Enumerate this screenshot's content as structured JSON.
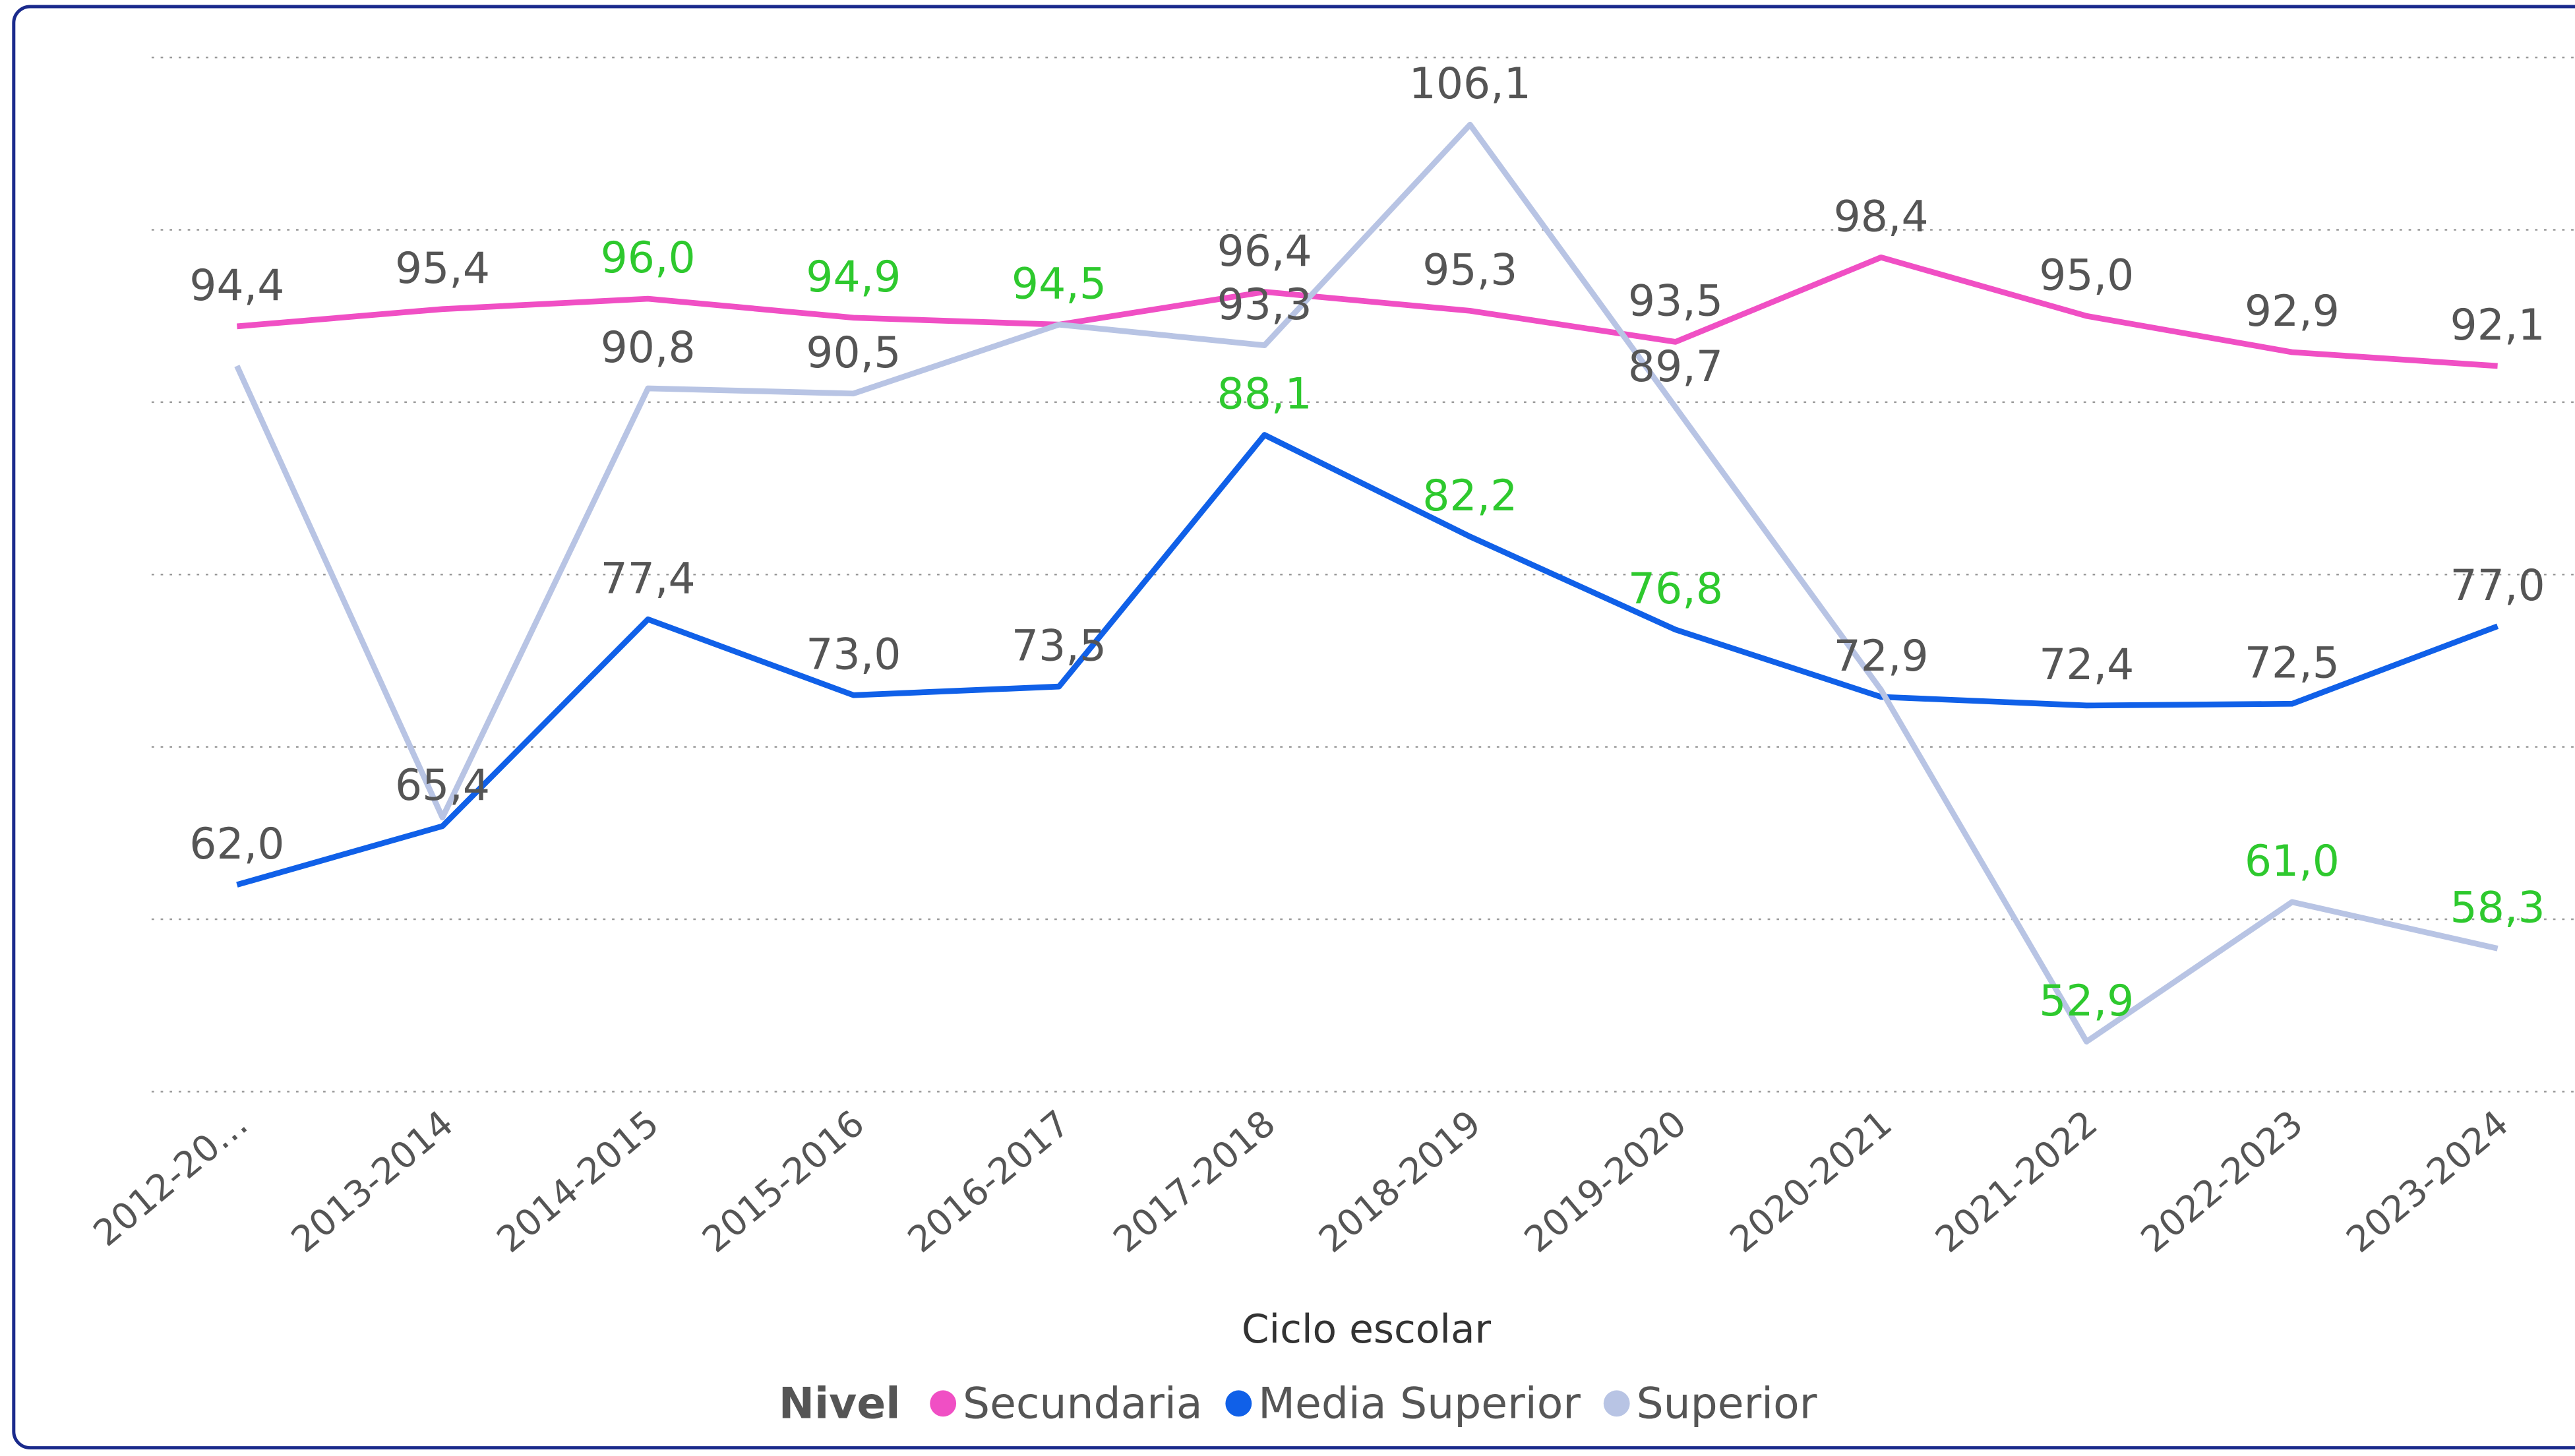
{
  "chart_data": {
    "type": "line",
    "x_axis_label": "Ciclo escolar",
    "legend_title": "Nivel",
    "categories": [
      "2012-20…",
      "2013-2014",
      "2014-2015",
      "2015-2016",
      "2016-2017",
      "2017-2018",
      "2018-2019",
      "2019-2020",
      "2020-2021",
      "2021-2022",
      "2022-2023",
      "2023-2024"
    ],
    "ylim": [
      50,
      110
    ],
    "yticks": [
      50,
      60,
      70,
      80,
      90,
      100,
      110
    ],
    "grid": true,
    "legend": "bottom",
    "series": [
      {
        "name": "Secundaria",
        "color": "#f04fc4",
        "values": [
          94.4,
          95.4,
          96.0,
          94.9,
          94.5,
          96.4,
          95.3,
          93.5,
          98.4,
          95.0,
          92.9,
          92.1
        ],
        "value_labels": [
          "94,4",
          "95,4",
          "96,0",
          "94,9",
          "94,5",
          "96,4",
          "95,3",
          "93,5",
          "98,4",
          "95,0",
          "92,9",
          "92,1"
        ],
        "value_label_colors": [
          "#555555",
          "#555555",
          "#2ec92e",
          "#2ec92e",
          "#2ec92e",
          "#555555",
          "#555555",
          "#555555",
          "#555555",
          "#555555",
          "#555555",
          "#555555"
        ]
      },
      {
        "name": "Media Superior",
        "color": "#1060e8",
        "values": [
          62.0,
          65.4,
          77.4,
          73.0,
          73.5,
          88.1,
          82.2,
          76.8,
          72.9,
          72.4,
          72.5,
          77.0
        ],
        "value_labels": [
          "62,0",
          "65,4",
          "77,4",
          "73,0",
          "73,5",
          "88,1",
          "82,2",
          "76,8",
          "72,9",
          "72,4",
          "72,5",
          "77,0"
        ],
        "value_label_colors": [
          "#555555",
          "#555555",
          "#555555",
          "#555555",
          "#555555",
          "#2ec92e",
          "#2ec92e",
          "#2ec92e",
          "#555555",
          "#555555",
          "#555555",
          "#555555"
        ]
      },
      {
        "name": "Superior",
        "color": "#b8c4e4",
        "values": [
          92.1,
          65.9,
          90.8,
          90.5,
          94.5,
          93.3,
          106.1,
          89.7,
          73.3,
          52.9,
          61.0,
          58.3
        ],
        "value_labels": [
          null,
          null,
          "90,8",
          "90,5",
          null,
          "93,3",
          "106,1",
          "89,7",
          null,
          "52,9",
          "61,0",
          "58,3"
        ],
        "value_label_colors": [
          "#555555",
          "#555555",
          "#555555",
          "#555555",
          "#555555",
          "#555555",
          "#555555",
          "#555555",
          "#555555",
          "#2ec92e",
          "#2ec92e",
          "#2ec92e"
        ]
      }
    ]
  }
}
